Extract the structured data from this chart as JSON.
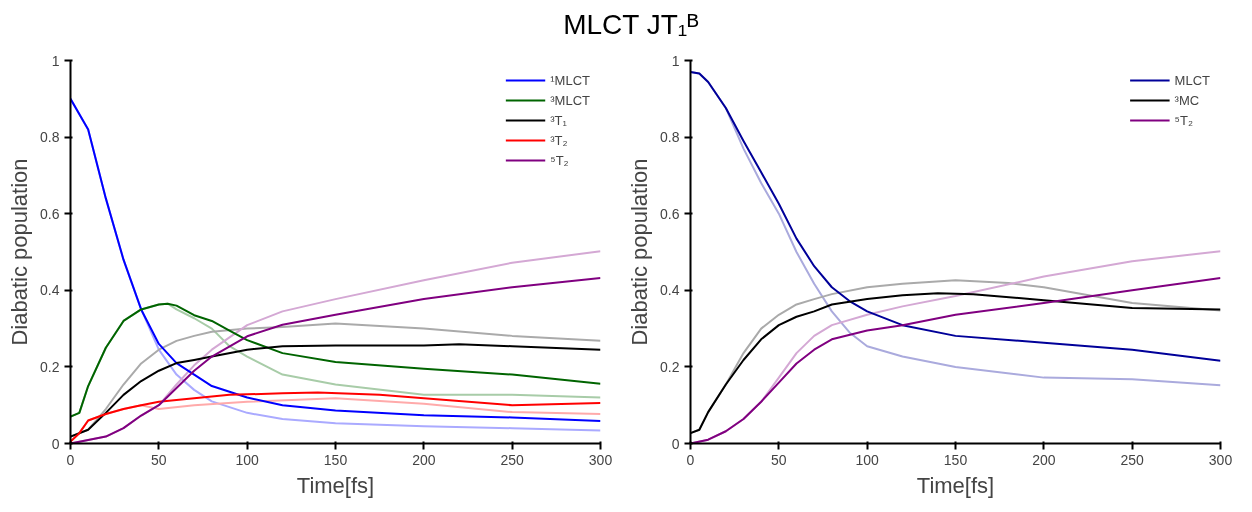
{
  "chart_data": [
    {
      "type": "line",
      "title": "MLCT JT₁ᴮ",
      "xlabel": "Time[fs]",
      "ylabel": "Diabatic population",
      "xlim": [
        0,
        300
      ],
      "ylim": [
        0,
        1
      ],
      "xticks": [
        0,
        50,
        100,
        150,
        200,
        250,
        300
      ],
      "yticks": [
        0,
        0.2,
        0.4,
        0.6,
        0.8,
        1
      ],
      "grid": false,
      "legend": "top right",
      "line_style": "solid",
      "series": [
        {
          "color": "#aaaaff",
          "x": [
            0,
            10,
            20,
            30,
            40,
            50,
            60,
            70,
            80,
            100,
            120,
            150,
            200,
            250,
            300
          ],
          "values": [
            0.9,
            0.82,
            0.64,
            0.48,
            0.35,
            0.245,
            0.18,
            0.14,
            0.11,
            0.08,
            0.064,
            0.053,
            0.045,
            0.04,
            0.034
          ]
        },
        {
          "color": "#a8cca8",
          "x": [
            0,
            5,
            10,
            20,
            30,
            40,
            50,
            55,
            60,
            70,
            80,
            90,
            100,
            120,
            150,
            200,
            250,
            300
          ],
          "values": [
            0.07,
            0.08,
            0.15,
            0.25,
            0.32,
            0.35,
            0.363,
            0.365,
            0.35,
            0.327,
            0.3,
            0.254,
            0.227,
            0.18,
            0.154,
            0.127,
            0.127,
            0.12
          ]
        },
        {
          "color": "#aaaaaa",
          "x": [
            0,
            10,
            20,
            30,
            40,
            50,
            60,
            70,
            80,
            100,
            120,
            150,
            200,
            250,
            300
          ],
          "values": [
            0.018,
            0.036,
            0.09,
            0.154,
            0.209,
            0.245,
            0.268,
            0.281,
            0.292,
            0.3,
            0.304,
            0.313,
            0.3,
            0.281,
            0.268
          ]
        },
        {
          "color": "#ffaaaa",
          "x": [
            0,
            5,
            10,
            20,
            30,
            40,
            50,
            70,
            100,
            150,
            200,
            250,
            300
          ],
          "values": [
            0.005,
            0.027,
            0.06,
            0.077,
            0.09,
            0.1,
            0.09,
            0.1,
            0.109,
            0.118,
            0.104,
            0.082,
            0.077
          ]
        },
        {
          "color": "#d4a8d4",
          "x": [
            0,
            20,
            30,
            40,
            50,
            60,
            70,
            80,
            100,
            120,
            150,
            200,
            250,
            300
          ],
          "values": [
            0,
            0.018,
            0.04,
            0.073,
            0.1,
            0.154,
            0.204,
            0.245,
            0.309,
            0.345,
            0.377,
            0.426,
            0.472,
            0.502
          ]
        },
        {
          "name": "¹MLCT",
          "color": "#0000ff",
          "x": [
            0,
            10,
            20,
            30,
            40,
            50,
            60,
            70,
            80,
            100,
            120,
            150,
            200,
            250,
            300
          ],
          "values": [
            0.9,
            0.82,
            0.64,
            0.48,
            0.35,
            0.26,
            0.21,
            0.18,
            0.15,
            0.12,
            0.1,
            0.086,
            0.074,
            0.068,
            0.059
          ]
        },
        {
          "name": "³MLCT",
          "color": "#006400",
          "x": [
            0,
            5,
            10,
            20,
            30,
            40,
            50,
            55,
            60,
            70,
            80,
            90,
            100,
            120,
            150,
            200,
            250,
            300
          ],
          "values": [
            0.07,
            0.08,
            0.15,
            0.25,
            0.32,
            0.35,
            0.363,
            0.365,
            0.36,
            0.335,
            0.32,
            0.295,
            0.27,
            0.236,
            0.213,
            0.195,
            0.18,
            0.156
          ]
        },
        {
          "name": "³T₁",
          "color": "#000000",
          "x": [
            0,
            10,
            20,
            30,
            40,
            50,
            60,
            70,
            80,
            100,
            120,
            150,
            200,
            220,
            250,
            300
          ],
          "values": [
            0.018,
            0.036,
            0.08,
            0.127,
            0.163,
            0.19,
            0.21,
            0.218,
            0.227,
            0.245,
            0.254,
            0.256,
            0.256,
            0.259,
            0.254,
            0.245
          ]
        },
        {
          "name": "³T₂",
          "color": "#ff0000",
          "x": [
            0,
            5,
            10,
            20,
            30,
            40,
            50,
            70,
            90,
            120,
            140,
            175,
            200,
            250,
            300
          ],
          "values": [
            0.005,
            0.027,
            0.06,
            0.077,
            0.09,
            0.1,
            0.109,
            0.118,
            0.127,
            0.131,
            0.133,
            0.127,
            0.118,
            0.1,
            0.106
          ]
        },
        {
          "name": "⁵T₂",
          "color": "#800080",
          "x": [
            0,
            20,
            30,
            40,
            50,
            60,
            70,
            80,
            100,
            120,
            150,
            200,
            250,
            300
          ],
          "values": [
            0,
            0.018,
            0.04,
            0.073,
            0.1,
            0.145,
            0.19,
            0.227,
            0.28,
            0.31,
            0.336,
            0.377,
            0.408,
            0.432
          ]
        }
      ]
    },
    {
      "type": "line",
      "xlabel": "Time[fs]",
      "ylabel": "Diabatic population",
      "xlim": [
        0,
        300
      ],
      "ylim": [
        0,
        1
      ],
      "xticks": [
        0,
        50,
        100,
        150,
        200,
        250,
        300
      ],
      "yticks": [
        0,
        0.2,
        0.4,
        0.6,
        0.8,
        1
      ],
      "grid": false,
      "legend": "top right",
      "line_style": "solid",
      "series": [
        {
          "color": "#aaaadd",
          "x": [
            0,
            5,
            10,
            20,
            30,
            40,
            50,
            60,
            70,
            80,
            90,
            100,
            120,
            150,
            200,
            250,
            300
          ],
          "values": [
            0.97,
            0.966,
            0.944,
            0.876,
            0.77,
            0.68,
            0.6,
            0.5,
            0.417,
            0.345,
            0.29,
            0.254,
            0.227,
            0.2,
            0.172,
            0.168,
            0.152
          ]
        },
        {
          "color": "#aaaaaa",
          "x": [
            0,
            5,
            10,
            20,
            30,
            40,
            50,
            60,
            70,
            80,
            100,
            120,
            150,
            180,
            200,
            250,
            300
          ],
          "values": [
            0.027,
            0.036,
            0.082,
            0.154,
            0.236,
            0.3,
            0.336,
            0.363,
            0.377,
            0.39,
            0.408,
            0.417,
            0.426,
            0.419,
            0.408,
            0.367,
            0.347
          ]
        },
        {
          "color": "#d4a8d4",
          "x": [
            0,
            10,
            20,
            30,
            40,
            50,
            60,
            70,
            80,
            100,
            120,
            150,
            200,
            250,
            300
          ],
          "values": [
            0,
            0.01,
            0.032,
            0.064,
            0.109,
            0.172,
            0.236,
            0.281,
            0.309,
            0.336,
            0.358,
            0.385,
            0.436,
            0.476,
            0.502
          ]
        },
        {
          "name": "MLCT",
          "color": "#000099",
          "x": [
            0,
            5,
            10,
            20,
            30,
            40,
            50,
            60,
            70,
            80,
            90,
            100,
            120,
            150,
            200,
            250,
            300
          ],
          "values": [
            0.97,
            0.966,
            0.944,
            0.876,
            0.79,
            0.708,
            0.626,
            0.535,
            0.463,
            0.408,
            0.372,
            0.345,
            0.309,
            0.281,
            0.263,
            0.245,
            0.216
          ]
        },
        {
          "name": "³MC",
          "color": "#000000",
          "x": [
            0,
            5,
            10,
            20,
            30,
            40,
            50,
            60,
            70,
            80,
            100,
            120,
            140,
            160,
            200,
            250,
            300
          ],
          "values": [
            0.027,
            0.036,
            0.082,
            0.154,
            0.218,
            0.272,
            0.309,
            0.331,
            0.345,
            0.363,
            0.377,
            0.387,
            0.392,
            0.39,
            0.374,
            0.354,
            0.35
          ]
        },
        {
          "name": "⁵T₂",
          "color": "#800080",
          "x": [
            0,
            10,
            20,
            30,
            40,
            50,
            60,
            70,
            80,
            100,
            120,
            150,
            200,
            250,
            300
          ],
          "values": [
            0,
            0.01,
            0.032,
            0.064,
            0.109,
            0.159,
            0.209,
            0.245,
            0.272,
            0.295,
            0.309,
            0.336,
            0.367,
            0.4,
            0.432
          ]
        }
      ]
    }
  ]
}
